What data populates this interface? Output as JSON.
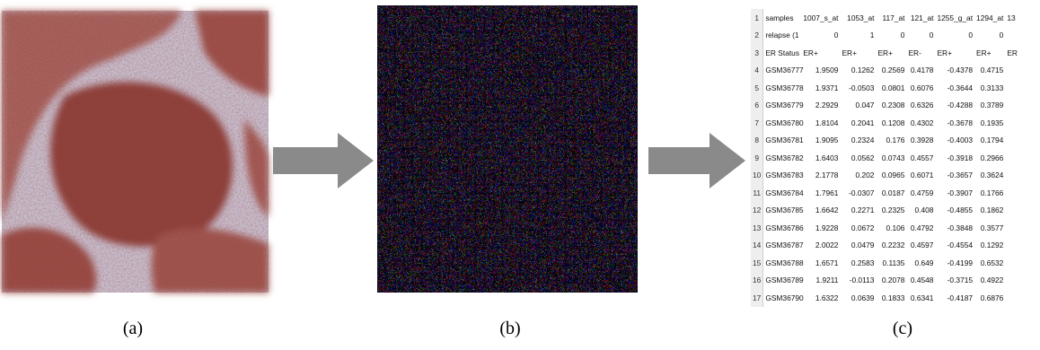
{
  "captions": {
    "a": "(a)",
    "b": "(b)",
    "c": "(c)"
  },
  "colors": {
    "arrow": "#8a8a8a",
    "tissue_brown": "#9c4a3e",
    "stroma_lilac": "#c4b8c8"
  },
  "panel_a": {
    "icon": "histology-tissue-image"
  },
  "panel_b": {
    "icon": "pixel-noise-image"
  },
  "spreadsheet": {
    "header": {
      "num": "1",
      "cells": [
        "samples",
        "1007_s_at",
        "1053_at",
        "117_at",
        "121_at",
        "1255_g_at",
        "1294_at",
        "13"
      ]
    },
    "rows": [
      {
        "num": "2",
        "cells": [
          "relapse (1",
          "0",
          "1",
          "0",
          "0",
          "0",
          "0",
          ""
        ]
      },
      {
        "num": "3",
        "cells": [
          "ER Status",
          "ER+",
          "ER+",
          "ER+",
          "ER-",
          "ER+",
          "ER+",
          "ER"
        ]
      },
      {
        "num": "4",
        "cells": [
          "GSM36777",
          "1.9509",
          "0.1262",
          "0.2569",
          "0.4178",
          "-0.4378",
          "0.4715",
          ""
        ]
      },
      {
        "num": "5",
        "cells": [
          "GSM36778",
          "1.9371",
          "-0.0503",
          "0.0801",
          "0.6076",
          "-0.3644",
          "0.3133",
          ""
        ]
      },
      {
        "num": "6",
        "cells": [
          "GSM36779",
          "2.2929",
          "0.047",
          "0.2308",
          "0.6326",
          "-0.4288",
          "0.3789",
          ""
        ]
      },
      {
        "num": "7",
        "cells": [
          "GSM36780",
          "1.8104",
          "0.2041",
          "0.1208",
          "0.4302",
          "-0.3678",
          "0.1935",
          ""
        ]
      },
      {
        "num": "8",
        "cells": [
          "GSM36781",
          "1.9095",
          "0.2324",
          "0.176",
          "0.3928",
          "-0.4003",
          "0.1794",
          ""
        ]
      },
      {
        "num": "9",
        "cells": [
          "GSM36782",
          "1.6403",
          "0.0562",
          "0.0743",
          "0.4557",
          "-0.3918",
          "0.2966",
          ""
        ]
      },
      {
        "num": "10",
        "cells": [
          "GSM36783",
          "2.1778",
          "0.202",
          "0.0965",
          "0.6071",
          "-0.3657",
          "0.3624",
          ""
        ]
      },
      {
        "num": "11",
        "cells": [
          "GSM36784",
          "1.7961",
          "-0.0307",
          "0.0187",
          "0.4759",
          "-0.3907",
          "0.1766",
          ""
        ]
      },
      {
        "num": "12",
        "cells": [
          "GSM36785",
          "1.6642",
          "0.2271",
          "0.2325",
          "0.408",
          "-0.4855",
          "0.1862",
          ""
        ]
      },
      {
        "num": "13",
        "cells": [
          "GSM36786",
          "1.9228",
          "0.0672",
          "0.106",
          "0.4792",
          "-0.3848",
          "0.3577",
          ""
        ]
      },
      {
        "num": "14",
        "cells": [
          "GSM36787",
          "2.0022",
          "0.0479",
          "0.2232",
          "0.4597",
          "-0.4554",
          "0.1292",
          ""
        ]
      },
      {
        "num": "15",
        "cells": [
          "GSM36788",
          "1.6571",
          "0.2583",
          "0.1135",
          "0.649",
          "-0.4199",
          "0.6532",
          ""
        ]
      },
      {
        "num": "16",
        "cells": [
          "GSM36789",
          "1.9211",
          "-0.0113",
          "0.2078",
          "0.4548",
          "-0.3715",
          "0.4922",
          ""
        ]
      },
      {
        "num": "17",
        "cells": [
          "GSM36790",
          "1.6322",
          "0.0639",
          "0.1833",
          "0.6341",
          "-0.4187",
          "0.6876",
          ""
        ]
      }
    ]
  }
}
